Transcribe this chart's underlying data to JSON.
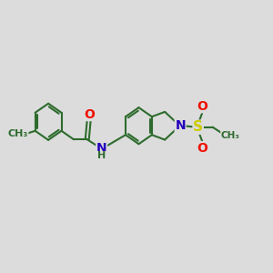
{
  "background_color": "#dcdcdc",
  "bond_color": "#2d6b2d",
  "bond_width": 1.5,
  "atom_colors": {
    "O": "#ee1100",
    "N": "#2200bb",
    "S": "#cccc00",
    "C": "#2d6b2d"
  },
  "font_size_atom": 9,
  "fig_width": 3.0,
  "fig_height": 3.0,
  "dpi": 100,
  "xlim": [
    0,
    12
  ],
  "ylim": [
    0,
    10
  ]
}
